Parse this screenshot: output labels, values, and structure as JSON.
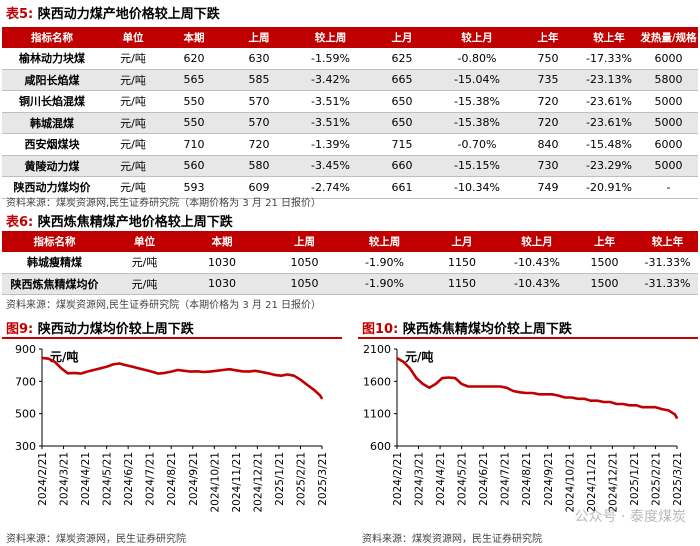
{
  "table5": {
    "title_num": "表5:",
    "title_text": "陕西动力煤产地价格较上周下跌",
    "headers": [
      "指标名称",
      "单位",
      "本期",
      "上周",
      "较上周",
      "上月",
      "较上月",
      "上年",
      "较上年",
      "发热量/规格"
    ],
    "rows": [
      [
        "榆林动力块煤",
        "元/吨",
        "620",
        "630",
        "-1.59%",
        "625",
        "-0.80%",
        "750",
        "-17.33%",
        "6000"
      ],
      [
        "咸阳长焰煤",
        "元/吨",
        "565",
        "585",
        "-3.42%",
        "665",
        "-15.04%",
        "735",
        "-23.13%",
        "5800"
      ],
      [
        "铜川长焰混煤",
        "元/吨",
        "550",
        "570",
        "-3.51%",
        "650",
        "-15.38%",
        "720",
        "-23.61%",
        "5000"
      ],
      [
        "韩城混煤",
        "元/吨",
        "550",
        "570",
        "-3.51%",
        "650",
        "-15.38%",
        "720",
        "-23.61%",
        "5000"
      ],
      [
        "西安烟煤块",
        "元/吨",
        "710",
        "720",
        "-1.39%",
        "715",
        "-0.70%",
        "840",
        "-15.48%",
        "6000"
      ],
      [
        "黄陵动力煤",
        "元/吨",
        "560",
        "580",
        "-3.45%",
        "660",
        "-15.15%",
        "730",
        "-23.29%",
        "5000"
      ],
      [
        "陕西动力煤均价",
        "元/吨",
        "593",
        "609",
        "-2.74%",
        "661",
        "-10.34%",
        "749",
        "-20.91%",
        "-"
      ]
    ],
    "source": "资料来源：煤炭资源网,民生证券研究院（本期价格为 3 月 21 日报价）"
  },
  "table6": {
    "title_num": "表6:",
    "title_text": "陕西炼焦精煤产地价格较上周下跌",
    "headers": [
      "指标名称",
      "单位",
      "本期",
      "上周",
      "较上周",
      "上月",
      "较上月",
      "上年",
      "较上年"
    ],
    "rows": [
      [
        "韩城瘦精煤",
        "元/吨",
        "1030",
        "1050",
        "-1.90%",
        "1150",
        "-10.43%",
        "1500",
        "-31.33%"
      ],
      [
        "陕西炼焦精煤均价",
        "元/吨",
        "1030",
        "1050",
        "-1.90%",
        "1150",
        "-10.43%",
        "1500",
        "-31.33%"
      ]
    ],
    "source": "资料来源：煤炭资源网,民生证券研究院（本期价格为 3 月 21 日报价）"
  },
  "chart9": {
    "title_num": "图9:",
    "title_text": "陕西动力煤均价较上周下跌",
    "source": "资料来源：煤炭资源网，民生证券研究院"
  },
  "chart10": {
    "title_num": "图10:",
    "title_text": "陕西炼焦精煤均价较上周下跌",
    "source": "资料来源：煤炭资源网，民生证券研究院"
  },
  "watermark": "公众号 · 泰度煤炭",
  "line_color": "#c00000",
  "chart_data": [
    {
      "type": "line",
      "title": "陕西动力煤均价较上周下跌",
      "ylabel": "元/吨",
      "ylim": [
        300,
        900
      ],
      "yticks": [
        300,
        500,
        700,
        900
      ],
      "xticks": [
        "2024/2/21",
        "2024/3/21",
        "2024/4/21",
        "2024/5/21",
        "2024/6/21",
        "2024/7/21",
        "2024/8/21",
        "2024/9/21",
        "2024/10/21",
        "2024/11/21",
        "2024/12/21",
        "2025/1/21",
        "2025/2/21",
        "2025/3/21"
      ],
      "x": [
        0,
        0.3,
        0.6,
        0.9,
        1.2,
        1.5,
        1.8,
        2.1,
        2.4,
        2.7,
        3,
        3.3,
        3.6,
        3.9,
        4.2,
        4.5,
        4.8,
        5.1,
        5.4,
        5.7,
        6,
        6.3,
        6.6,
        6.9,
        7.2,
        7.5,
        7.8,
        8.1,
        8.4,
        8.7,
        9,
        9.3,
        9.6,
        9.9,
        10.2,
        10.5,
        10.8,
        11.1,
        11.4,
        11.7,
        12,
        12.3,
        12.6,
        12.9,
        13
      ],
      "values": [
        845,
        840,
        820,
        780,
        750,
        752,
        748,
        760,
        770,
        780,
        790,
        805,
        810,
        800,
        790,
        780,
        770,
        760,
        748,
        752,
        760,
        770,
        765,
        760,
        762,
        758,
        760,
        765,
        770,
        775,
        768,
        762,
        760,
        765,
        758,
        750,
        740,
        735,
        742,
        735,
        710,
        680,
        650,
        615,
        593
      ]
    },
    {
      "type": "line",
      "title": "陕西炼焦精煤均价较上周下跌",
      "ylabel": "元/吨",
      "ylim": [
        600,
        2100
      ],
      "yticks": [
        600,
        1100,
        1600,
        2100
      ],
      "xticks": [
        "2024/2/21",
        "2024/3/21",
        "2024/4/21",
        "2024/5/21",
        "2024/6/21",
        "2024/7/21",
        "2024/8/21",
        "2024/9/21",
        "2024/10/21",
        "2024/11/21",
        "2024/12/21",
        "2025/1/21",
        "2025/2/21",
        "2025/3/21"
      ],
      "x": [
        0,
        0.3,
        0.6,
        0.9,
        1.2,
        1.5,
        1.8,
        2.1,
        2.4,
        2.7,
        3,
        3.3,
        3.6,
        3.9,
        4.2,
        4.5,
        4.8,
        5.1,
        5.4,
        5.7,
        6,
        6.3,
        6.6,
        6.9,
        7.2,
        7.5,
        7.8,
        8.1,
        8.4,
        8.7,
        9,
        9.3,
        9.6,
        9.9,
        10.2,
        10.5,
        10.8,
        11.1,
        11.4,
        11.7,
        12,
        12.3,
        12.6,
        12.9,
        13
      ],
      "values": [
        1960,
        1900,
        1800,
        1650,
        1560,
        1500,
        1560,
        1650,
        1660,
        1650,
        1560,
        1520,
        1520,
        1520,
        1520,
        1520,
        1520,
        1500,
        1450,
        1430,
        1420,
        1420,
        1400,
        1400,
        1400,
        1380,
        1350,
        1350,
        1330,
        1330,
        1300,
        1300,
        1280,
        1280,
        1250,
        1250,
        1230,
        1230,
        1200,
        1200,
        1200,
        1170,
        1150,
        1090,
        1030
      ]
    }
  ]
}
